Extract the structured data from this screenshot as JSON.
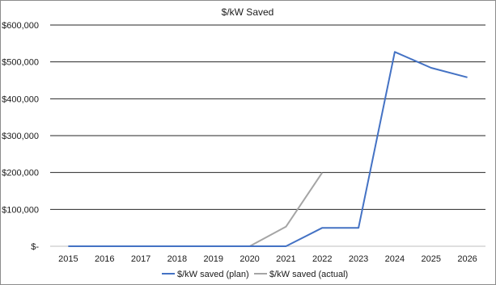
{
  "chart_data": {
    "type": "line",
    "title": "$/kW Saved",
    "xlabel": "",
    "ylabel": "",
    "categories": [
      "2015",
      "2016",
      "2017",
      "2018",
      "2019",
      "2020",
      "2021",
      "2022",
      "2023",
      "2024",
      "2025",
      "2026"
    ],
    "ylim": [
      0,
      600000
    ],
    "yticks": [
      0,
      100000,
      200000,
      300000,
      400000,
      500000,
      600000
    ],
    "ytick_labels": [
      "$-",
      "$100,000",
      "$200,000",
      "$300,000",
      "$400,000",
      "$500,000",
      "$600,000"
    ],
    "grid": true,
    "legend_position": "bottom",
    "series": [
      {
        "name": "$/kW saved (plan)",
        "color": "#4472c4",
        "values": [
          0,
          0,
          0,
          0,
          0,
          0,
          0,
          50000,
          50000,
          527000,
          484000,
          458000
        ]
      },
      {
        "name": "$/kW saved (actual)",
        "color": "#a5a5a5",
        "values": [
          0,
          0,
          0,
          0,
          0,
          0,
          53000,
          200000,
          null,
          null,
          null,
          null
        ]
      }
    ]
  }
}
